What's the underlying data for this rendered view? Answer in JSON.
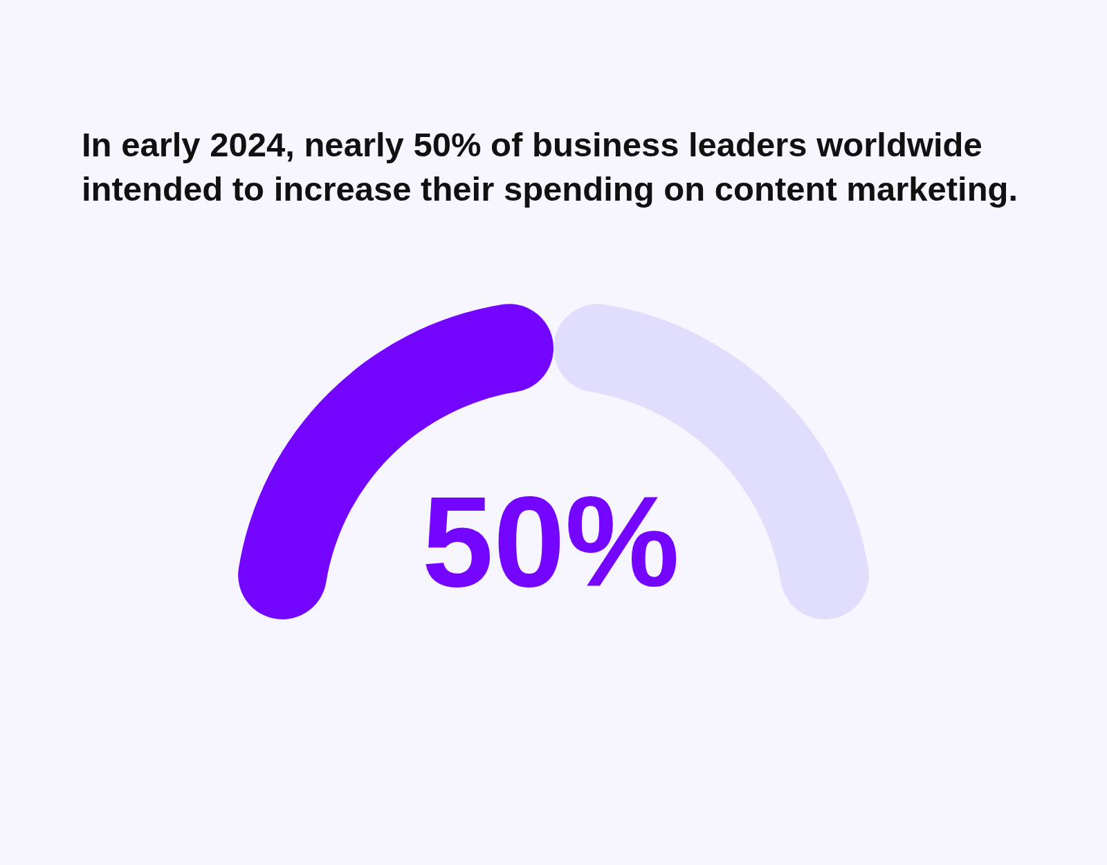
{
  "chart_data": {
    "type": "donut",
    "title": "In early 2024, nearly 50% of business leaders worldwide intended to increase their spending on content marketing.",
    "categories": [
      null,
      null
    ],
    "values": [
      50,
      50
    ],
    "colors": [
      "#7405ff",
      "#e1ddfd"
    ],
    "value_labels": [
      "50%",
      null
    ]
  }
}
